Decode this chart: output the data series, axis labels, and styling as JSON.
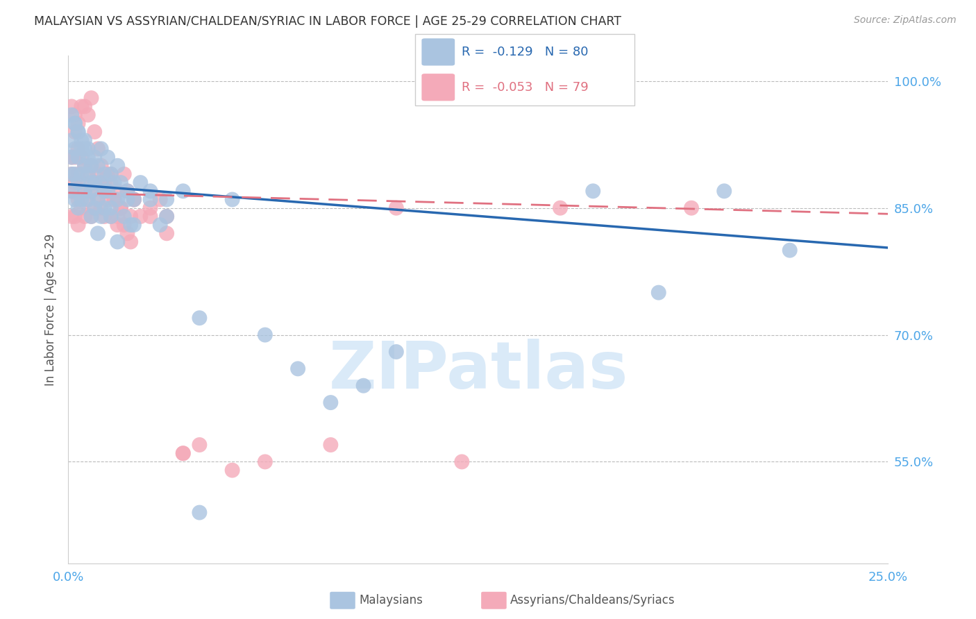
{
  "title": "MALAYSIAN VS ASSYRIAN/CHALDEAN/SYRIAC IN LABOR FORCE | AGE 25-29 CORRELATION CHART",
  "source": "Source: ZipAtlas.com",
  "ylabel": "In Labor Force | Age 25-29",
  "xlim": [
    0.0,
    0.25
  ],
  "ylim": [
    0.43,
    1.03
  ],
  "xticks": [
    0.0,
    0.05,
    0.1,
    0.15,
    0.2,
    0.25
  ],
  "xticklabels": [
    "0.0%",
    "",
    "",
    "",
    "",
    "25.0%"
  ],
  "yticks": [
    0.55,
    0.7,
    0.85,
    1.0
  ],
  "yticklabels": [
    "55.0%",
    "70.0%",
    "85.0%",
    "100.0%"
  ],
  "blue_color": "#aac4e0",
  "pink_color": "#f4aab9",
  "blue_line_color": "#2868b0",
  "pink_line_color": "#e07080",
  "legend_blue_R": "-0.129",
  "legend_blue_N": "80",
  "legend_pink_R": "-0.053",
  "legend_pink_N": "79",
  "watermark": "ZIPatlas",
  "watermark_color": "#daeaf8",
  "title_color": "#333333",
  "axis_label_color": "#555555",
  "tick_color": "#4da6e8",
  "grid_color": "#bbbbbb",
  "blue_intercept": 0.878,
  "blue_slope": -0.3,
  "pink_intercept": 0.868,
  "pink_slope": -0.1,
  "blue_scatter_x": [
    0.001,
    0.001,
    0.001,
    0.001,
    0.002,
    0.002,
    0.002,
    0.002,
    0.003,
    0.003,
    0.003,
    0.003,
    0.004,
    0.004,
    0.004,
    0.005,
    0.005,
    0.005,
    0.006,
    0.006,
    0.006,
    0.007,
    0.007,
    0.007,
    0.008,
    0.008,
    0.009,
    0.009,
    0.01,
    0.01,
    0.01,
    0.011,
    0.011,
    0.012,
    0.012,
    0.013,
    0.013,
    0.014,
    0.015,
    0.015,
    0.016,
    0.017,
    0.018,
    0.019,
    0.02,
    0.022,
    0.025,
    0.028,
    0.03,
    0.035,
    0.04,
    0.05,
    0.06,
    0.07,
    0.08,
    0.09,
    0.1,
    0.12,
    0.14,
    0.16,
    0.18,
    0.2,
    0.22,
    0.001,
    0.002,
    0.003,
    0.004,
    0.005,
    0.006,
    0.007,
    0.008,
    0.009,
    0.011,
    0.013,
    0.015,
    0.018,
    0.02,
    0.025,
    0.03,
    0.04
  ],
  "blue_scatter_y": [
    0.93,
    0.91,
    0.89,
    0.87,
    0.95,
    0.92,
    0.89,
    0.86,
    0.94,
    0.91,
    0.88,
    0.85,
    0.92,
    0.89,
    0.86,
    0.93,
    0.9,
    0.87,
    0.92,
    0.89,
    0.86,
    0.9,
    0.87,
    0.84,
    0.91,
    0.88,
    0.9,
    0.86,
    0.92,
    0.88,
    0.84,
    0.89,
    0.85,
    0.91,
    0.87,
    0.89,
    0.85,
    0.88,
    0.9,
    0.86,
    0.88,
    0.84,
    0.87,
    0.83,
    0.86,
    0.88,
    0.87,
    0.83,
    0.86,
    0.87,
    0.72,
    0.86,
    0.7,
    0.66,
    0.62,
    0.64,
    0.68,
    1.0,
    1.0,
    0.87,
    0.75,
    0.87,
    0.8,
    0.96,
    0.95,
    0.94,
    0.93,
    0.92,
    0.91,
    0.88,
    0.85,
    0.82,
    0.87,
    0.84,
    0.81,
    0.86,
    0.83,
    0.86,
    0.84,
    0.49
  ],
  "pink_scatter_x": [
    0.001,
    0.001,
    0.001,
    0.001,
    0.002,
    0.002,
    0.002,
    0.002,
    0.003,
    0.003,
    0.003,
    0.003,
    0.004,
    0.004,
    0.004,
    0.005,
    0.005,
    0.005,
    0.006,
    0.006,
    0.007,
    0.007,
    0.007,
    0.008,
    0.008,
    0.009,
    0.009,
    0.01,
    0.01,
    0.011,
    0.011,
    0.012,
    0.012,
    0.013,
    0.013,
    0.014,
    0.015,
    0.015,
    0.016,
    0.017,
    0.018,
    0.019,
    0.02,
    0.022,
    0.025,
    0.028,
    0.03,
    0.035,
    0.04,
    0.05,
    0.06,
    0.08,
    0.1,
    0.12,
    0.15,
    0.19,
    0.001,
    0.002,
    0.003,
    0.004,
    0.005,
    0.006,
    0.007,
    0.008,
    0.009,
    0.01,
    0.011,
    0.012,
    0.013,
    0.014,
    0.015,
    0.016,
    0.017,
    0.018,
    0.019,
    0.02,
    0.025,
    0.03,
    0.035
  ],
  "pink_scatter_y": [
    0.91,
    0.89,
    0.87,
    0.84,
    0.94,
    0.91,
    0.88,
    0.84,
    0.92,
    0.89,
    0.86,
    0.83,
    0.91,
    0.88,
    0.85,
    0.9,
    0.87,
    0.84,
    0.89,
    0.86,
    0.9,
    0.87,
    0.84,
    0.88,
    0.85,
    0.89,
    0.86,
    0.88,
    0.85,
    0.87,
    0.84,
    0.89,
    0.86,
    0.88,
    0.84,
    0.86,
    0.87,
    0.83,
    0.85,
    0.89,
    0.87,
    0.84,
    0.86,
    0.84,
    0.85,
    0.86,
    0.84,
    0.56,
    0.57,
    0.54,
    0.55,
    0.57,
    0.85,
    0.55,
    0.85,
    0.85,
    0.97,
    0.96,
    0.95,
    0.97,
    0.97,
    0.96,
    0.98,
    0.94,
    0.92,
    0.9,
    0.88,
    0.87,
    0.89,
    0.86,
    0.84,
    0.85,
    0.83,
    0.82,
    0.81,
    0.86,
    0.84,
    0.82,
    0.56
  ]
}
